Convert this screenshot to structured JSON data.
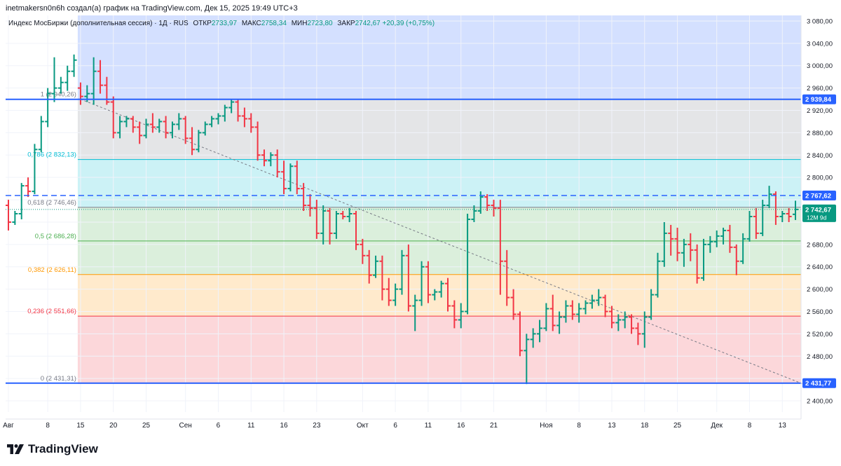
{
  "header": {
    "attribution": "inetmakersn0n6h создал(а) график на TradingView.com, Дек 15, 2025 19:49 UTC+3"
  },
  "legend": {
    "instrument": "Индекс МосБиржи (дополнительная сессия) · 1Д · RUS",
    "open_label": "ОТКР",
    "open": "2733,97",
    "high_label": "МАКС",
    "high": "2758,34",
    "low_label": "МИН",
    "low": "2723,80",
    "close_label": "ЗАКР",
    "close": "2742,67",
    "change": "+20,39 (+0,75%)"
  },
  "footer": {
    "logo_text": "TradingView"
  },
  "colors": {
    "up": "#089981",
    "down": "#f23645",
    "hline": "#2962ff",
    "axis_text": "#131722"
  },
  "chart_data": {
    "type": "ohlc",
    "ylim": [
      2380,
      3090
    ],
    "y_ticks": [
      "2 400,00",
      "2 440,00",
      "2 480,00",
      "2 520,00",
      "2 560,00",
      "2 600,00",
      "2 640,00",
      "2 680,00",
      "2 720,00",
      "2 760,00",
      "2 800,00",
      "2 840,00",
      "2 880,00",
      "2 920,00",
      "2 960,00",
      "3 000,00",
      "3 040,00",
      "3 080,00"
    ],
    "x_tick_labels": [
      {
        "i": 0,
        "label": "Авг"
      },
      {
        "i": 6,
        "label": "8"
      },
      {
        "i": 11,
        "label": "15"
      },
      {
        "i": 16,
        "label": "20"
      },
      {
        "i": 21,
        "label": "25"
      },
      {
        "i": 27,
        "label": "Сен"
      },
      {
        "i": 32,
        "label": "6"
      },
      {
        "i": 37,
        "label": "11"
      },
      {
        "i": 42,
        "label": "16"
      },
      {
        "i": 47,
        "label": "23"
      },
      {
        "i": 54,
        "label": "Окт"
      },
      {
        "i": 59,
        "label": "6"
      },
      {
        "i": 64,
        "label": "11"
      },
      {
        "i": 69,
        "label": "16"
      },
      {
        "i": 74,
        "label": "21"
      },
      {
        "i": 82,
        "label": "Ноя"
      },
      {
        "i": 87,
        "label": "8"
      },
      {
        "i": 92,
        "label": "13"
      },
      {
        "i": 97,
        "label": "18"
      },
      {
        "i": 102,
        "label": "25"
      },
      {
        "i": 108,
        "label": "Дек"
      },
      {
        "i": 113,
        "label": "8"
      },
      {
        "i": 118,
        "label": "13"
      }
    ],
    "fib_levels": [
      {
        "label": "1 (2 940,26)",
        "value": 2940.26,
        "color": "#787b86",
        "fill": "rgba(41,98,255,0.2)"
      },
      {
        "label": "0,786 (2 832,13)",
        "value": 2832.13,
        "color": "#00bcd4",
        "fill": "rgba(120,123,134,0.2)"
      },
      {
        "label": "0,618 (2 746,46)",
        "value": 2746.46,
        "color": "#787b86",
        "fill": "rgba(0,188,212,0.2)"
      },
      {
        "label": "0,5 (2 686,28)",
        "value": 2686.28,
        "color": "#4caf50",
        "fill": "rgba(76,175,80,0.2)"
      },
      {
        "label": "0,382 (2 626,11)",
        "value": 2626.11,
        "color": "#ff9800",
        "fill": "rgba(76,175,80,0.2)"
      },
      {
        "label": "0,236 (2 551,66)",
        "value": 2551.66,
        "color": "#f23645",
        "fill": "rgba(255,152,0,0.2)"
      },
      {
        "label": "0 (2 431,31)",
        "value": 2431.31,
        "color": "#787b86",
        "fill": "rgba(242,54,69,0.2)"
      }
    ],
    "fib_top": 3090,
    "hlines": [
      {
        "value": 2939.84,
        "label": "2 939,84",
        "color": "#2962ff",
        "style": "solid"
      },
      {
        "value": 2767.62,
        "label": "2 767,62",
        "color": "#2962ff",
        "style": "dashed"
      },
      {
        "value": 2431.77,
        "label": "2 431,77",
        "color": "#2962ff",
        "style": "solid"
      }
    ],
    "price_badge": {
      "value": 2742.67,
      "label": "2 742,67",
      "sublabel": "12M 9d",
      "color": "#089981"
    },
    "y_tick_partial": "2 720,00",
    "trendline": {
      "from": {
        "i": 11,
        "v": 2940
      },
      "to": {
        "i": 121,
        "v": 2431
      }
    },
    "bars": [
      [
        2750,
        2760,
        2705,
        2720
      ],
      [
        2720,
        2740,
        2715,
        2735
      ],
      [
        2735,
        2790,
        2725,
        2785
      ],
      [
        2785,
        2800,
        2765,
        2775
      ],
      [
        2775,
        2860,
        2770,
        2850
      ],
      [
        2850,
        2910,
        2845,
        2900
      ],
      [
        2900,
        2960,
        2890,
        2950
      ],
      [
        2950,
        3015,
        2935,
        2960
      ],
      [
        2960,
        2980,
        2950,
        2970
      ],
      [
        2970,
        3000,
        2955,
        2990
      ],
      [
        2990,
        3020,
        2980,
        3010
      ],
      [
        2960,
        2970,
        2930,
        2945
      ],
      [
        2945,
        2965,
        2935,
        2950
      ],
      [
        2950,
        3015,
        2930,
        2990
      ],
      [
        2990,
        3010,
        2950,
        2965
      ],
      [
        2965,
        2980,
        2930,
        2935
      ],
      [
        2935,
        2945,
        2870,
        2880
      ],
      [
        2880,
        2910,
        2870,
        2900
      ],
      [
        2900,
        2910,
        2890,
        2905
      ],
      [
        2905,
        2910,
        2880,
        2890
      ],
      [
        2890,
        2900,
        2860,
        2875
      ],
      [
        2875,
        2905,
        2870,
        2895
      ],
      [
        2895,
        2915,
        2880,
        2890
      ],
      [
        2890,
        2905,
        2880,
        2900
      ],
      [
        2900,
        2910,
        2870,
        2880
      ],
      [
        2880,
        2900,
        2870,
        2895
      ],
      [
        2895,
        2915,
        2885,
        2905
      ],
      [
        2905,
        2910,
        2860,
        2870
      ],
      [
        2870,
        2890,
        2840,
        2850
      ],
      [
        2850,
        2885,
        2845,
        2880
      ],
      [
        2880,
        2900,
        2875,
        2895
      ],
      [
        2895,
        2910,
        2890,
        2905
      ],
      [
        2905,
        2915,
        2895,
        2910
      ],
      [
        2910,
        2930,
        2900,
        2925
      ],
      [
        2925,
        2940,
        2915,
        2935
      ],
      [
        2935,
        2940,
        2900,
        2910
      ],
      [
        2910,
        2925,
        2890,
        2905
      ],
      [
        2905,
        2915,
        2880,
        2890
      ],
      [
        2890,
        2900,
        2830,
        2840
      ],
      [
        2840,
        2850,
        2820,
        2830
      ],
      [
        2830,
        2845,
        2820,
        2840
      ],
      [
        2840,
        2850,
        2800,
        2810
      ],
      [
        2810,
        2830,
        2770,
        2780
      ],
      [
        2780,
        2825,
        2775,
        2820
      ],
      [
        2820,
        2830,
        2770,
        2780
      ],
      [
        2780,
        2790,
        2740,
        2750
      ],
      [
        2750,
        2770,
        2730,
        2745
      ],
      [
        2745,
        2760,
        2690,
        2700
      ],
      [
        2700,
        2750,
        2680,
        2740
      ],
      [
        2740,
        2745,
        2680,
        2700
      ],
      [
        2700,
        2740,
        2690,
        2735
      ],
      [
        2735,
        2740,
        2725,
        2730
      ],
      [
        2730,
        2745,
        2720,
        2735
      ],
      [
        2735,
        2740,
        2670,
        2680
      ],
      [
        2680,
        2690,
        2645,
        2660
      ],
      [
        2660,
        2670,
        2610,
        2625
      ],
      [
        2625,
        2660,
        2620,
        2650
      ],
      [
        2650,
        2660,
        2580,
        2600
      ],
      [
        2600,
        2620,
        2570,
        2580
      ],
      [
        2580,
        2610,
        2570,
        2600
      ],
      [
        2600,
        2670,
        2590,
        2660
      ],
      [
        2660,
        2680,
        2560,
        2570
      ],
      [
        2570,
        2590,
        2525,
        2580
      ],
      [
        2580,
        2650,
        2570,
        2640
      ],
      [
        2640,
        2650,
        2575,
        2590
      ],
      [
        2590,
        2600,
        2580,
        2595
      ],
      [
        2595,
        2615,
        2585,
        2610
      ],
      [
        2610,
        2620,
        2560,
        2570
      ],
      [
        2570,
        2580,
        2530,
        2545
      ],
      [
        2545,
        2575,
        2530,
        2560
      ],
      [
        2560,
        2735,
        2555,
        2725
      ],
      [
        2725,
        2750,
        2720,
        2740
      ],
      [
        2740,
        2775,
        2735,
        2765
      ],
      [
        2765,
        2770,
        2740,
        2750
      ],
      [
        2750,
        2760,
        2730,
        2745
      ],
      [
        2745,
        2760,
        2590,
        2650
      ],
      [
        2650,
        2670,
        2570,
        2585
      ],
      [
        2585,
        2600,
        2545,
        2555
      ],
      [
        2555,
        2560,
        2480,
        2490
      ],
      [
        2490,
        2520,
        2430,
        2510
      ],
      [
        2510,
        2530,
        2495,
        2520
      ],
      [
        2520,
        2545,
        2505,
        2530
      ],
      [
        2530,
        2575,
        2525,
        2565
      ],
      [
        2565,
        2590,
        2525,
        2535
      ],
      [
        2535,
        2560,
        2520,
        2550
      ],
      [
        2550,
        2580,
        2540,
        2570
      ],
      [
        2570,
        2580,
        2545,
        2555
      ],
      [
        2555,
        2575,
        2540,
        2565
      ],
      [
        2565,
        2580,
        2555,
        2575
      ],
      [
        2575,
        2590,
        2565,
        2580
      ],
      [
        2580,
        2600,
        2570,
        2585
      ],
      [
        2585,
        2590,
        2550,
        2560
      ],
      [
        2560,
        2570,
        2530,
        2540
      ],
      [
        2540,
        2555,
        2525,
        2545
      ],
      [
        2545,
        2560,
        2530,
        2550
      ],
      [
        2550,
        2555,
        2520,
        2530
      ],
      [
        2530,
        2540,
        2500,
        2520
      ],
      [
        2520,
        2560,
        2495,
        2550
      ],
      [
        2550,
        2600,
        2545,
        2590
      ],
      [
        2590,
        2665,
        2585,
        2650
      ],
      [
        2650,
        2720,
        2640,
        2700
      ],
      [
        2700,
        2715,
        2660,
        2690
      ],
      [
        2690,
        2710,
        2650,
        2665
      ],
      [
        2665,
        2690,
        2640,
        2680
      ],
      [
        2680,
        2700,
        2650,
        2670
      ],
      [
        2670,
        2680,
        2610,
        2620
      ],
      [
        2620,
        2690,
        2615,
        2680
      ],
      [
        2680,
        2695,
        2665,
        2685
      ],
      [
        2685,
        2705,
        2675,
        2695
      ],
      [
        2695,
        2710,
        2680,
        2705
      ],
      [
        2705,
        2715,
        2665,
        2675
      ],
      [
        2675,
        2680,
        2625,
        2650
      ],
      [
        2650,
        2700,
        2645,
        2690
      ],
      [
        2690,
        2740,
        2685,
        2730
      ],
      [
        2730,
        2745,
        2690,
        2700
      ],
      [
        2700,
        2760,
        2695,
        2750
      ],
      [
        2750,
        2785,
        2745,
        2770
      ],
      [
        2770,
        2775,
        2715,
        2730
      ],
      [
        2730,
        2740,
        2720,
        2735
      ],
      [
        2735,
        2745,
        2720,
        2730
      ],
      [
        2733.97,
        2758.34,
        2723.8,
        2742.67
      ]
    ]
  }
}
